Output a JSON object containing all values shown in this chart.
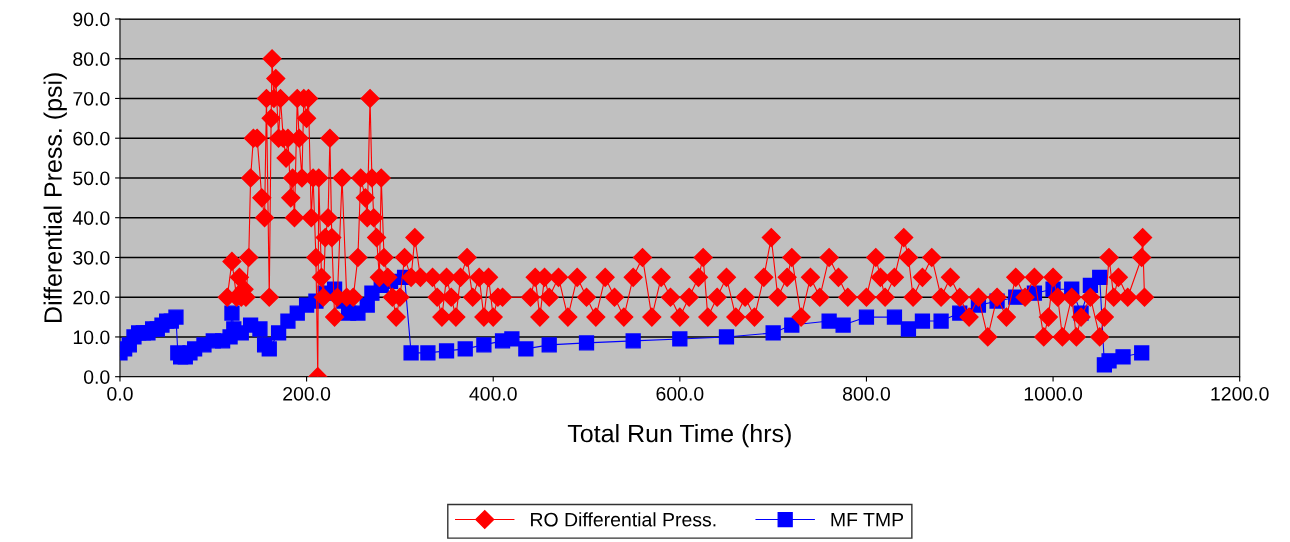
{
  "chart_data": {
    "type": "line",
    "xlabel": "Total Run Time (hrs)",
    "ylabel": "Differential Press. (psi)",
    "xlim": [
      0,
      1200
    ],
    "ylim": [
      0,
      90
    ],
    "xticks": [
      {
        "value": 0,
        "label": "0.0"
      },
      {
        "value": 200,
        "label": "200.0"
      },
      {
        "value": 400,
        "label": "400.0"
      },
      {
        "value": 600,
        "label": "600.0"
      },
      {
        "value": 800,
        "label": "800.0"
      },
      {
        "value": 1000,
        "label": "1000.0"
      },
      {
        "value": 1200,
        "label": "1200.0"
      }
    ],
    "yticks": [
      {
        "value": 0,
        "label": "0.0"
      },
      {
        "value": 10,
        "label": "10.0"
      },
      {
        "value": 20,
        "label": "20.0"
      },
      {
        "value": 30,
        "label": "30.0"
      },
      {
        "value": 40,
        "label": "40.0"
      },
      {
        "value": 50,
        "label": "50.0"
      },
      {
        "value": 60,
        "label": "60.0"
      },
      {
        "value": 70,
        "label": "70.0"
      },
      {
        "value": 80,
        "label": "80.0"
      },
      {
        "value": 90,
        "label": "90.0"
      }
    ],
    "grid": "y",
    "legend": "bottom",
    "line_style": "solid",
    "series": [
      {
        "name": "RO Differential Press.",
        "color": "#ff0000",
        "marker": "diamond",
        "x": [
          115,
          120,
          125,
          128,
          130,
          133,
          135,
          138,
          140,
          143,
          147,
          152,
          155,
          157,
          160,
          162,
          163,
          165,
          167,
          170,
          172,
          175,
          178,
          180,
          183,
          185,
          187,
          190,
          192,
          195,
          197,
          200,
          202,
          205,
          207,
          210,
          212,
          213,
          216,
          218,
          220,
          223,
          225,
          227,
          230,
          233,
          238,
          243,
          250,
          255,
          258,
          263,
          265,
          268,
          270,
          272,
          275,
          278,
          280,
          283,
          287,
          292,
          296,
          300,
          305,
          312,
          316,
          322,
          335,
          340,
          345,
          350,
          355,
          360,
          365,
          372,
          378,
          385,
          390,
          395,
          400,
          405,
          410,
          440,
          445,
          450,
          455,
          460,
          470,
          480,
          490,
          500,
          510,
          520,
          530,
          540,
          550,
          560,
          570,
          580,
          590,
          600,
          610,
          620,
          625,
          630,
          640,
          650,
          660,
          670,
          680,
          690,
          698,
          705,
          715,
          720,
          730,
          740,
          750,
          760,
          770,
          780,
          800,
          810,
          815,
          820,
          830,
          840,
          845,
          850,
          860,
          870,
          880,
          890,
          900,
          910,
          920,
          930,
          940,
          950,
          960,
          970,
          980,
          990,
          995,
          1000,
          1005,
          1010,
          1020,
          1025,
          1030,
          1040,
          1050,
          1055,
          1060,
          1065,
          1070,
          1080,
          1095,
          1096,
          1098
        ],
        "values": [
          20,
          29,
          20,
          25,
          20,
          22,
          20,
          30,
          50,
          60,
          60,
          45,
          40,
          70,
          20,
          65,
          80,
          70,
          75,
          60,
          70,
          60,
          55,
          60,
          45,
          50,
          40,
          70,
          60,
          50,
          70,
          65,
          70,
          40,
          50,
          30,
          0,
          50,
          25,
          20,
          35,
          40,
          60,
          35,
          15,
          20,
          50,
          20,
          20,
          30,
          50,
          45,
          40,
          70,
          50,
          40,
          35,
          25,
          50,
          30,
          25,
          20,
          15,
          20,
          30,
          25,
          35,
          25,
          25,
          20,
          15,
          25,
          20,
          15,
          25,
          30,
          20,
          25,
          15,
          25,
          15,
          20,
          20,
          20,
          25,
          15,
          25,
          20,
          25,
          15,
          25,
          20,
          15,
          25,
          20,
          15,
          25,
          30,
          15,
          25,
          20,
          15,
          20,
          25,
          30,
          15,
          20,
          25,
          15,
          20,
          15,
          25,
          35,
          20,
          25,
          30,
          15,
          25,
          20,
          30,
          25,
          20,
          20,
          30,
          25,
          20,
          25,
          35,
          30,
          20,
          25,
          30,
          20,
          25,
          20,
          15,
          20,
          10,
          20,
          15,
          25,
          20,
          25,
          10,
          15,
          25,
          20,
          10,
          20,
          10,
          15,
          20,
          10,
          15,
          30,
          20,
          25,
          20,
          30,
          35,
          20
        ]
      },
      {
        "name": "MF TMP",
        "color": "#0000ff",
        "marker": "square",
        "x": [
          0,
          5,
          10,
          15,
          20,
          25,
          30,
          35,
          40,
          45,
          50,
          55,
          60,
          62,
          65,
          70,
          75,
          80,
          90,
          100,
          110,
          118,
          120,
          122,
          130,
          140,
          150,
          155,
          160,
          170,
          180,
          190,
          200,
          210,
          220,
          230,
          240,
          245,
          255,
          265,
          270,
          280,
          290,
          305,
          312,
          330,
          350,
          370,
          390,
          410,
          420,
          435,
          460,
          500,
          550,
          600,
          650,
          700,
          720,
          760,
          775,
          800,
          830,
          845,
          860,
          880,
          900,
          920,
          940,
          960,
          980,
          1000,
          1020,
          1030,
          1040,
          1050,
          1055,
          1060,
          1075,
          1095
        ],
        "values": [
          6,
          7,
          8,
          10,
          11,
          11,
          11,
          12,
          12,
          13,
          14,
          14,
          15,
          6,
          5,
          5,
          6,
          7,
          8,
          9,
          9,
          10,
          16,
          12,
          11,
          13,
          12,
          8,
          7,
          11,
          14,
          16,
          18,
          19,
          21,
          22,
          19,
          16,
          16,
          18,
          21,
          23,
          24,
          25,
          6,
          6,
          6.5,
          7,
          8,
          9,
          9.5,
          7,
          8,
          8.5,
          9,
          9.5,
          10,
          11,
          13,
          14,
          13,
          15,
          15,
          12,
          14,
          14,
          16,
          18,
          19,
          20,
          21,
          22,
          22,
          16,
          23,
          25,
          3,
          4,
          5,
          6
        ]
      }
    ]
  }
}
